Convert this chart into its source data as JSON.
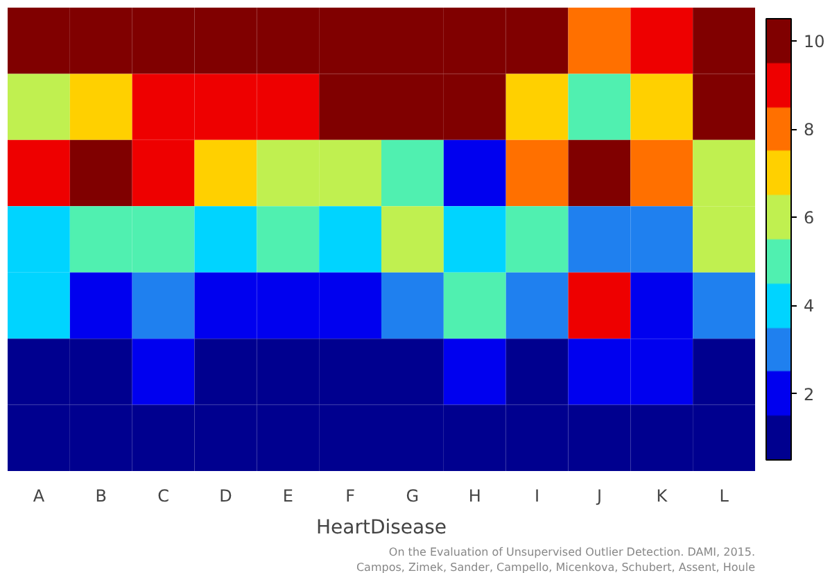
{
  "chart_data": {
    "type": "heatmap",
    "xlabel": "HeartDisease",
    "categories": [
      "A",
      "B",
      "C",
      "D",
      "E",
      "F",
      "G",
      "H",
      "I",
      "J",
      "K",
      "L"
    ],
    "y_categories": [
      null,
      null,
      null,
      null,
      null,
      null,
      null
    ],
    "cells": [
      [
        10,
        10,
        10,
        10,
        10,
        10,
        10,
        10,
        10,
        8,
        9,
        10
      ],
      [
        6,
        7,
        9,
        9,
        9,
        10,
        10,
        10,
        7,
        5,
        7,
        10
      ],
      [
        9,
        10,
        9,
        7,
        6,
        6,
        5,
        2,
        8,
        10,
        8,
        6
      ],
      [
        4,
        5,
        5,
        4,
        5,
        4,
        6,
        4,
        5,
        3,
        3,
        6
      ],
      [
        4,
        2,
        3,
        2,
        2,
        2,
        3,
        5,
        3,
        9,
        2,
        3
      ],
      [
        1,
        1,
        2,
        1,
        1,
        1,
        1,
        2,
        1,
        2,
        2,
        1
      ],
      [
        1,
        1,
        1,
        1,
        1,
        1,
        1,
        1,
        1,
        1,
        1,
        1
      ]
    ],
    "clim": [
      0.5,
      10.5
    ],
    "cticks": [
      2,
      4,
      6,
      8,
      10
    ],
    "colors": [
      "#00008f",
      "#0000ef",
      "#1f80ef",
      "#00d4ff",
      "#50f0b0",
      "#c0f050",
      "#ffd000",
      "#ff7000",
      "#ee0000",
      "#800000"
    ],
    "annotations": [
      "On the Evaluation of Unsupervised Outlier Detection. DAMI, 2015.",
      "Campos, Zimek, Sander, Campello, Micenkova, Schubert, Assent, Houle"
    ]
  }
}
